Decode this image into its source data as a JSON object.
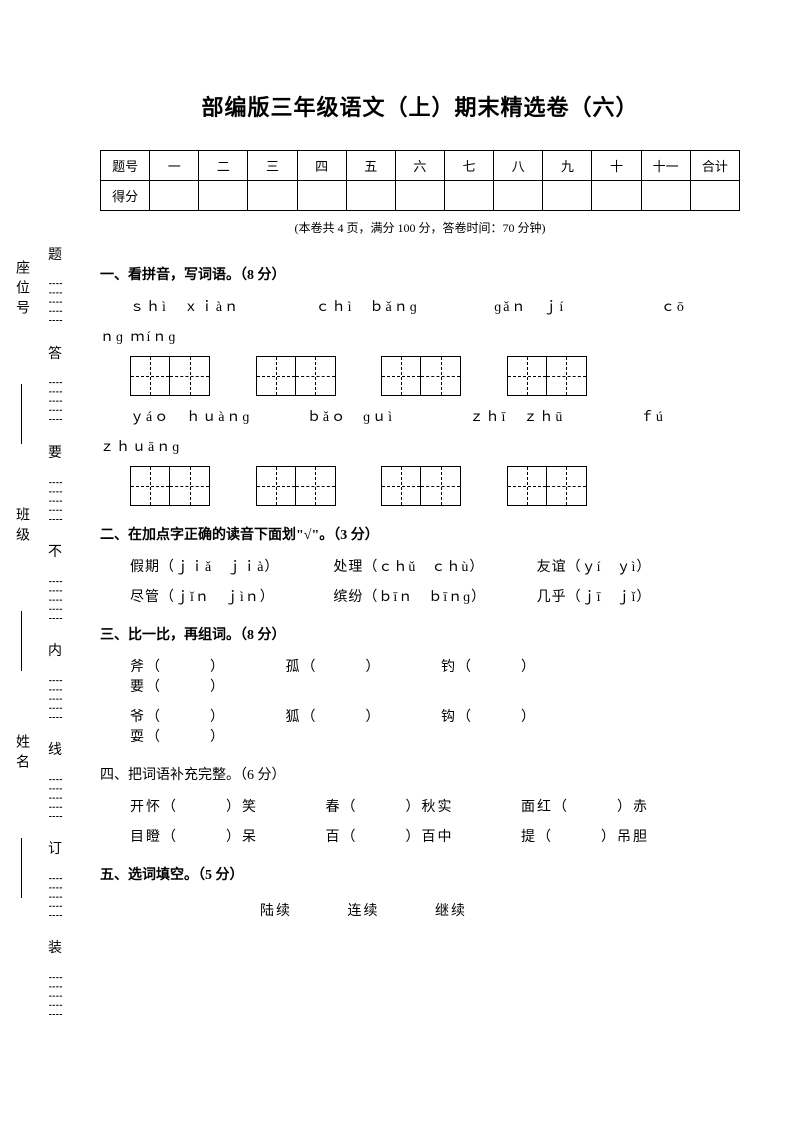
{
  "title": "部编版三年级语文（上）期末精选卷（六）",
  "info_strip": {
    "labels": [
      "座位号",
      "班级",
      "姓名"
    ],
    "warn_chars": [
      "题",
      "答",
      "要",
      "不",
      "内",
      "线",
      "订",
      "装"
    ]
  },
  "score_table": {
    "row1": [
      "题号",
      "一",
      "二",
      "三",
      "四",
      "五",
      "六",
      "七",
      "八",
      "九",
      "十",
      "十一",
      "合计"
    ],
    "row2_label": "得分"
  },
  "subnote": "(本卷共 4 页，满分 100 分，答卷时间：70 分钟)",
  "q1": {
    "heading": "一、看拼音，写词语。（8 分）",
    "line1": {
      "g1": "ｓｈì　ｘｉàｎ",
      "g2": "ｃｈì　ｂǎｎɡ",
      "g3": "ɡǎｎ　ｊí",
      "g4": "ｃō"
    },
    "line1_wrap": "ｎɡ ｍíｎɡ",
    "line2": {
      "g1": "ｙáｏ　ｈｕàｎɡ",
      "g2": "ｂǎｏ　ɡｕì",
      "g3": "ｚｈī　ｚｈū",
      "g4": "ｆú"
    },
    "line2_wrap": "ｚｈｕāｎɡ"
  },
  "q2": {
    "heading": "二、在加点字正确的读音下面划\"√\"。（3 分）",
    "row1": {
      "a": "假期（ｊｉǎ　ｊｉà）",
      "b": "处理（ｃｈǔ　ｃｈù）",
      "c": "友谊（ｙí　ｙì）"
    },
    "row2": {
      "a": "尽管（ｊǐｎ　ｊìｎ）",
      "b": "缤纷（ｂīｎ　ｂīｎɡ）",
      "c": "几乎（ｊī　ｊǐ）"
    }
  },
  "q3": {
    "heading": "三、比一比，再组词。（8 分）",
    "row1": [
      "斧（　　　）",
      "孤（　　　）",
      "钓（　　　）",
      "要（　　　）"
    ],
    "row2": [
      "爷（　　　）",
      "狐（　　　）",
      "钩（　　　）",
      "耍（　　　）"
    ]
  },
  "q4": {
    "heading": "四、把词语补充完整。（6 分）",
    "row1": [
      "开怀（　　　）笑",
      "春（　　　）秋实",
      "面红（　　　）赤"
    ],
    "row2": [
      "目瞪（　　　）呆",
      "百（　　　）百中",
      "提（　　　）吊胆"
    ]
  },
  "q5": {
    "heading": "五、选词填空。（5 分）",
    "words": [
      "陆续",
      "连续",
      "继续"
    ]
  },
  "colors": {
    "text": "#000000",
    "bg": "#ffffff"
  }
}
